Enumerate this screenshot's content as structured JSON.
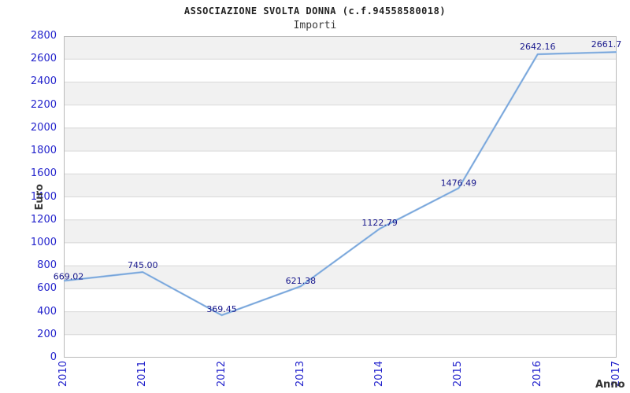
{
  "chart_data": {
    "type": "line",
    "title": "ASSOCIAZIONE SVOLTA DONNA (c.f.94558580018)",
    "subtitle": "Importi",
    "xlabel": "Anno",
    "ylabel": "Euro",
    "categories": [
      "2010",
      "2011",
      "2012",
      "2013",
      "2014",
      "2015",
      "2016",
      "2017"
    ],
    "values": [
      669.02,
      745.0,
      369.45,
      621.38,
      1122.79,
      1476.49,
      2642.16,
      2661.7
    ],
    "point_labels": [
      "669.02",
      "745.00",
      "369.45",
      "621.38",
      "1122.79",
      "1476.49",
      "2642.16",
      "2661.7"
    ],
    "ylim": [
      0,
      2800
    ],
    "ytick_step": 200,
    "grid": true,
    "banded_background": true,
    "legend": "none",
    "colors": {
      "line": "#74a3da",
      "line_highlight": "#a8c6e8",
      "tick_label": "#2323cc",
      "point_label": "#17178c",
      "band": "#f1f1f1",
      "gridline": "#d8d8d8",
      "plot_border": "#b9b9b9",
      "background": "#ffffff"
    },
    "label_dx": [
      6,
      0,
      0,
      0,
      0,
      0,
      0,
      -13
    ],
    "label_dy": [
      -2,
      -5,
      -4,
      -3,
      -4,
      -3,
      -6,
      -6
    ]
  }
}
